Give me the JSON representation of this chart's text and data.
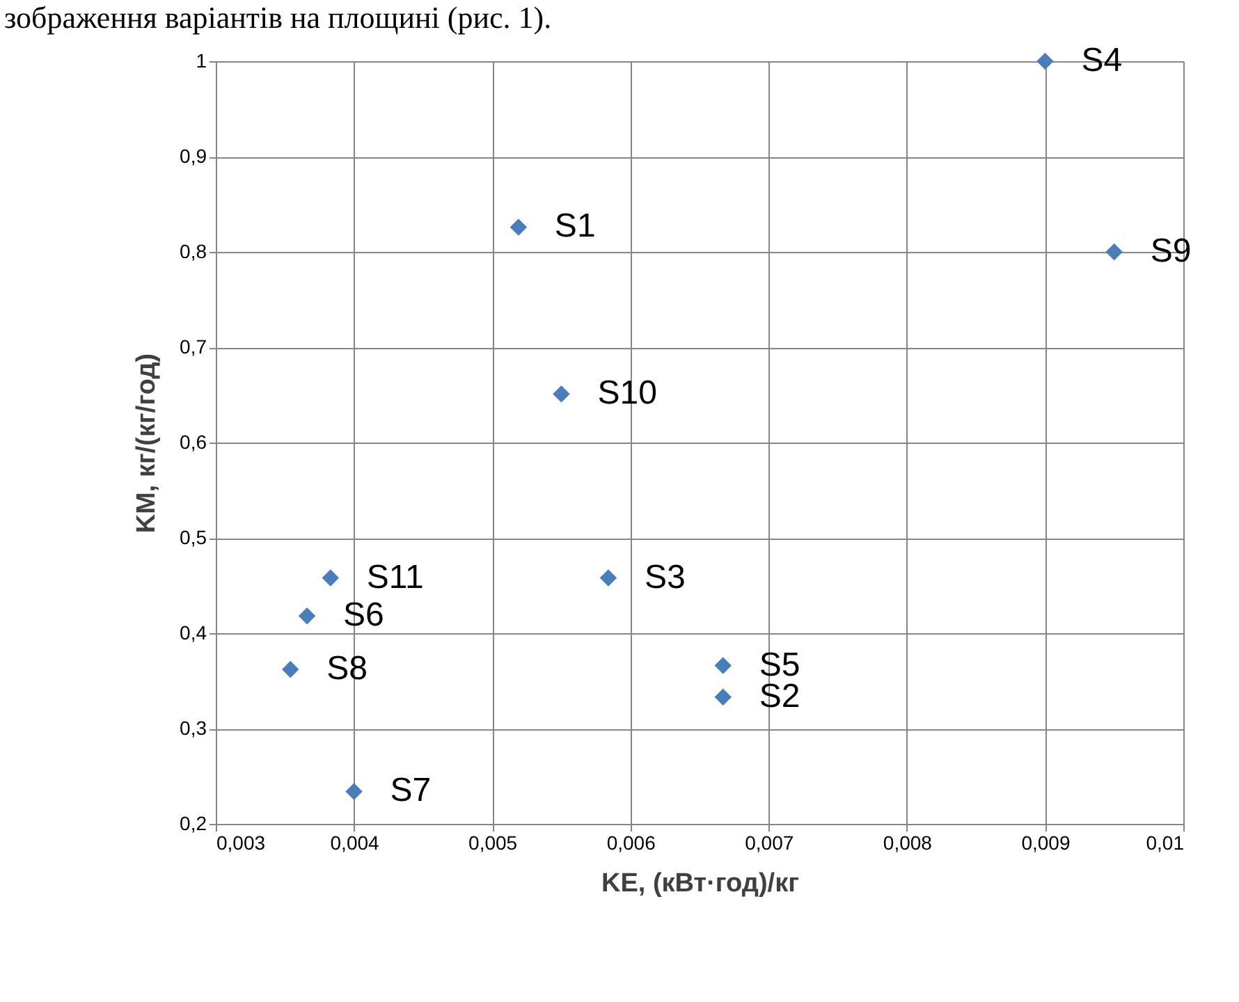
{
  "chart_data": {
    "type": "scatter",
    "xlabel": "KE, (кВт·год)/кг",
    "ylabel": "KM, кг/(кг/год)",
    "x": [
      0.00519,
      0.00667,
      0.00584,
      0.009,
      0.00667,
      0.00366,
      0.004,
      0.00354,
      0.0095,
      0.0055,
      0.00383
    ],
    "series": [
      {
        "color": "#4a7ebb",
        "values": [
          0.826,
          0.333,
          0.458,
          1.0,
          0.366,
          0.418,
          0.234,
          0.362,
          0.8,
          0.651,
          0.458
        ]
      }
    ],
    "marker": "diamond",
    "xlim": [
      0.003,
      0.01
    ],
    "ylim": [
      0.2,
      1.0
    ],
    "xticks": [
      {
        "value": 0.003,
        "label": "0,003"
      },
      {
        "value": 0.004,
        "label": "0,004"
      },
      {
        "value": 0.005,
        "label": "0,005"
      },
      {
        "value": 0.006,
        "label": "0,006"
      },
      {
        "value": 0.007,
        "label": "0,007"
      },
      {
        "value": 0.008,
        "label": "0,008"
      },
      {
        "value": 0.009,
        "label": "0,009"
      },
      {
        "value": 0.01,
        "label": "0,01"
      }
    ],
    "yticks": [
      {
        "value": 0.2,
        "label": "0,2"
      },
      {
        "value": 0.3,
        "label": "0,3"
      },
      {
        "value": 0.4,
        "label": "0,4"
      },
      {
        "value": 0.5,
        "label": "0,5"
      },
      {
        "value": 0.6,
        "label": "0,6"
      },
      {
        "value": 0.7,
        "label": "0,7"
      },
      {
        "value": 0.8,
        "label": "0,8"
      },
      {
        "value": 0.9,
        "label": "0,9"
      },
      1
    ],
    "grid": true,
    "legend": false,
    "annotations": [
      "зображення варіантів на площині (рис. 1).",
      {
        "text": "S1",
        "x": 0.00519,
        "y": 0.826
      },
      {
        "text": "S2",
        "x": 0.00667,
        "y": 0.333
      },
      {
        "text": "S3",
        "x": 0.00584,
        "y": 0.458
      },
      {
        "text": "S4",
        "x": 0.009,
        "y": 1.0
      },
      {
        "text": "S5",
        "x": 0.00667,
        "y": 0.366
      },
      {
        "text": "S6",
        "x": 0.00366,
        "y": 0.418
      },
      {
        "text": "S7",
        "x": 0.004,
        "y": 0.234
      },
      {
        "text": "S8",
        "x": 0.00354,
        "y": 0.362
      },
      {
        "text": "S9",
        "x": 0.0095,
        "y": 0.8
      },
      {
        "text": "S10",
        "x": 0.0055,
        "y": 0.651
      },
      {
        "text": "S11",
        "x": 0.00383,
        "y": 0.458
      }
    ]
  }
}
